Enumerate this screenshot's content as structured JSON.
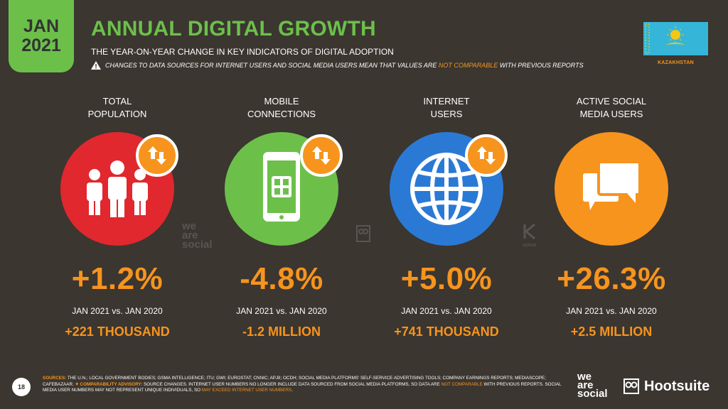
{
  "badge": {
    "month": "JAN",
    "year": "2021"
  },
  "header": {
    "title": "ANNUAL DIGITAL GROWTH",
    "subtitle": "THE YEAR-ON-YEAR CHANGE IN KEY INDICATORS OF DIGITAL ADOPTION",
    "warning_before": "CHANGES TO DATA SOURCES FOR INTERNET USERS AND SOCIAL MEDIA USERS MEAN THAT VALUES ARE ",
    "warning_highlight": "NOT COMPARABLE",
    "warning_after": " WITH PREVIOUS REPORTS"
  },
  "country": {
    "label": "KAZAKHSTAN",
    "flag_color": "#35b6d8",
    "emblem_color": "#f5c518"
  },
  "colors": {
    "accent": "#f7941d",
    "green": "#6cc04a",
    "red": "#e0282e",
    "blue": "#2a7ad5",
    "orange": "#f7941d",
    "background": "#3b3630"
  },
  "indicators": [
    {
      "label_line1": "TOTAL",
      "label_line2": "POPULATION",
      "icon": "people-icon",
      "color": "#e0282e",
      "change": "+1.2%",
      "comparison": "JAN 2021 vs. JAN 2020",
      "absolute": "+221 THOUSAND"
    },
    {
      "label_line1": "MOBILE",
      "label_line2": "CONNECTIONS",
      "icon": "mobile-sim-icon",
      "color": "#6cc04a",
      "change": "-4.8%",
      "comparison": "JAN 2021 vs. JAN 2020",
      "absolute": "-1.2 MILLION"
    },
    {
      "label_line1": "INTERNET",
      "label_line2": "USERS",
      "icon": "globe-icon",
      "color": "#2a7ad5",
      "change": "+5.0%",
      "comparison": "JAN 2021 vs. JAN 2020",
      "absolute": "+741 THOUSAND"
    },
    {
      "label_line1": "ACTIVE SOCIAL",
      "label_line2": "MEDIA USERS",
      "icon": "chat-bubbles-icon",
      "color": "#f7941d",
      "change": "+26.3%",
      "comparison": "JAN 2021 vs. JAN 2020",
      "absolute": "+2.5 MILLION"
    }
  ],
  "watermarks": {
    "we_are_social": [
      "we",
      "are",
      "social"
    ],
    "kepios": "KEPIOS"
  },
  "footer": {
    "page_number": "18",
    "sources_label": "SOURCES:",
    "sources_text": " THE U.N.; LOCAL GOVERNMENT BODIES; GSMA INTELLIGENCE; ITU; GWI; EUROSTAT; CNNIC; APJII; OCDH; SOCIAL MEDIA PLATFORMS' SELF-SERVICE ADVERTISING TOOLS; COMPANY EARNINGS REPORTS; MEDIASCOPE; CAFEBAZAAR. ",
    "advisory_label": "COMPARABILITY ADVISORY:",
    "advisory_text1": " SOURCE CHANGES. INTERNET USER NUMBERS NO LONGER INCLUDE DATA SOURCED FROM SOCIAL MEDIA PLATFORMS, SO DATA ARE ",
    "advisory_highlight1": "NOT COMPARABLE",
    "advisory_text2": " WITH PREVIOUS REPORTS. SOCIAL MEDIA USER NUMBERS MAY NOT REPRESENT UNIQUE INDIVIDUALS, SO ",
    "advisory_highlight2": "MAY EXCEED INTERNET USER NUMBERS",
    "advisory_end": ".",
    "brand_we_are_social": [
      "we",
      "are",
      "social"
    ],
    "brand_hootsuite": "Hootsuite"
  }
}
